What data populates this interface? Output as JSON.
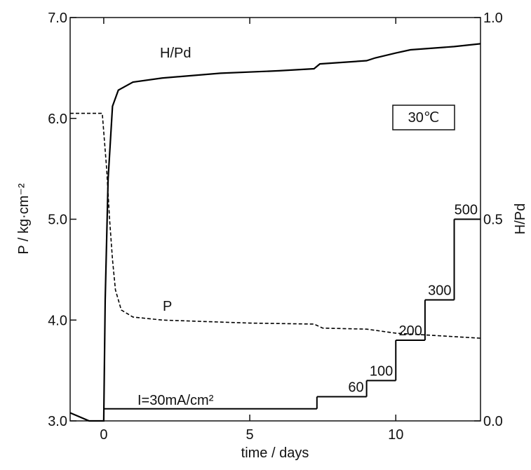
{
  "chart_data": {
    "type": "line",
    "x_label": "time / days",
    "y_label": "P / kg·cm⁻²",
    "y2_label": "H/Pd",
    "xlim": [
      -1.15,
      12.9
    ],
    "xticks": [
      0,
      5,
      10
    ],
    "ylim": [
      3.0,
      7.0
    ],
    "yticks": [
      {
        "value": 3,
        "label": "3.0"
      },
      {
        "value": 4,
        "label": "4.0"
      },
      {
        "value": 5,
        "label": "5.0"
      },
      {
        "value": 6,
        "label": "6.0"
      },
      {
        "value": 7,
        "label": "7.0"
      }
    ],
    "y2lim": [
      0,
      1
    ],
    "y2ticks": [
      {
        "value": 0,
        "label": "0.0"
      },
      {
        "value": 0.5,
        "label": "0.5"
      },
      {
        "value": 1,
        "label": "1.0"
      }
    ],
    "y3lim": [
      0,
      1000
    ],
    "temperature_label": "30℃",
    "series": [
      {
        "name": "H/Pd",
        "axis": "y2",
        "color": "#000000",
        "dash": false,
        "x": [
          -1.15,
          -0.5,
          0,
          0.05,
          0.15,
          0.3,
          0.5,
          1,
          2,
          4,
          6,
          7.2,
          7.4,
          9,
          9.3,
          10,
          10.5,
          12,
          12.9
        ],
        "values": [
          0.02,
          0,
          0,
          0.3,
          0.6,
          0.78,
          0.82,
          0.84,
          0.85,
          0.862,
          0.868,
          0.873,
          0.885,
          0.893,
          0.9,
          0.912,
          0.92,
          0.928,
          0.935
        ]
      },
      {
        "name": "P",
        "axis": "y",
        "color": "#000000",
        "dash": true,
        "x": [
          -1.15,
          -0.05,
          0.1,
          0.2,
          0.3,
          0.4,
          0.6,
          1,
          2,
          5,
          7.2,
          7.5,
          9,
          10,
          12.9
        ],
        "values": [
          6.05,
          6.05,
          5.5,
          5.0,
          4.6,
          4.3,
          4.1,
          4.03,
          4.0,
          3.97,
          3.96,
          3.92,
          3.91,
          3.87,
          3.82
        ]
      }
    ],
    "current": {
      "name": "I=30mA/cm²",
      "axis": "y3",
      "color": "#000000",
      "x": [
        0,
        7.3,
        9,
        10,
        11,
        12,
        12.9
      ],
      "values": [
        30,
        60,
        100,
        200,
        300,
        500,
        500
      ]
    }
  }
}
